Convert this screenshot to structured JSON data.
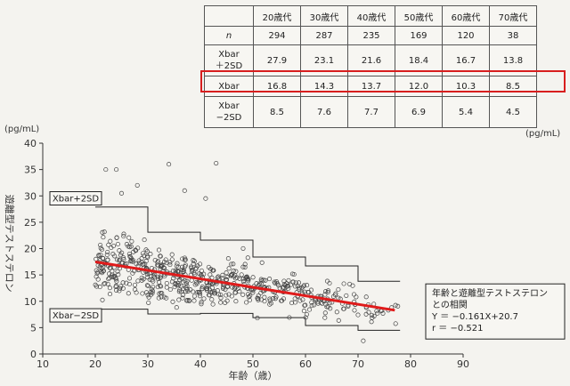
{
  "table": {
    "headers": [
      "20歳代",
      "30歳代",
      "40歳代",
      "50歳代",
      "60歳代",
      "70歳代"
    ],
    "rows": [
      {
        "label": [
          "n"
        ],
        "values": [
          "294",
          "287",
          "235",
          "169",
          "120",
          "38"
        ]
      },
      {
        "label": [
          "Xbar",
          "＋2SD"
        ],
        "values": [
          "27.9",
          "23.1",
          "21.6",
          "18.4",
          "16.7",
          "13.8"
        ]
      },
      {
        "label": [
          "Xbar"
        ],
        "values": [
          "16.8",
          "14.3",
          "13.7",
          "12.0",
          "10.3",
          "8.5"
        ]
      },
      {
        "label": [
          "Xbar",
          "−2SD"
        ],
        "values": [
          "8.5",
          "7.6",
          "7.7",
          "6.9",
          "5.4",
          "4.5"
        ]
      }
    ],
    "unit": "(pg/mL)"
  },
  "chart_data": {
    "type": "scatter",
    "xlabel": "年齢（歳）",
    "ylabel": "遊離型テストステロン",
    "yunit": "(pg/mL)",
    "xlim": [
      10,
      90
    ],
    "ylim": [
      0,
      40
    ],
    "xticks": [
      10,
      20,
      30,
      40,
      50,
      60,
      70,
      80,
      90
    ],
    "yticks": [
      0,
      5,
      10,
      15,
      20,
      25,
      30,
      35,
      40
    ],
    "grid": false,
    "band_upper_label": "Xbar+2SD",
    "band_lower_label": "Xbar−2SD",
    "decades": [
      {
        "from": 20,
        "to": 30,
        "upper": 27.9,
        "mean": 16.8,
        "lower": 8.5,
        "n": 294
      },
      {
        "from": 30,
        "to": 40,
        "upper": 23.1,
        "mean": 14.3,
        "lower": 7.6,
        "n": 287
      },
      {
        "from": 40,
        "to": 50,
        "upper": 21.6,
        "mean": 13.7,
        "lower": 7.7,
        "n": 235
      },
      {
        "from": 50,
        "to": 60,
        "upper": 18.4,
        "mean": 12.0,
        "lower": 6.9,
        "n": 169
      },
      {
        "from": 60,
        "to": 70,
        "upper": 16.7,
        "mean": 10.3,
        "lower": 5.4,
        "n": 120
      },
      {
        "from": 70,
        "to": 78,
        "upper": 13.8,
        "mean": 8.5,
        "lower": 4.5,
        "n": 38
      }
    ],
    "regression": {
      "slope": -0.161,
      "intercept": 20.7,
      "x_range": [
        20,
        77
      ],
      "color": "#e01b1b"
    },
    "annotation": [
      "年齢と遊離型テストステロン",
      "との相関",
      "Y ＝ −0.161X+20.7",
      "r ＝ −0.521"
    ],
    "outliers": [
      {
        "x": 22,
        "y": 35
      },
      {
        "x": 24,
        "y": 35
      },
      {
        "x": 34,
        "y": 36
      },
      {
        "x": 43,
        "y": 36.2
      },
      {
        "x": 37,
        "y": 31
      },
      {
        "x": 28,
        "y": 32
      },
      {
        "x": 25,
        "y": 30.5
      },
      {
        "x": 41,
        "y": 29.5
      },
      {
        "x": 71,
        "y": 2.5
      }
    ]
  }
}
